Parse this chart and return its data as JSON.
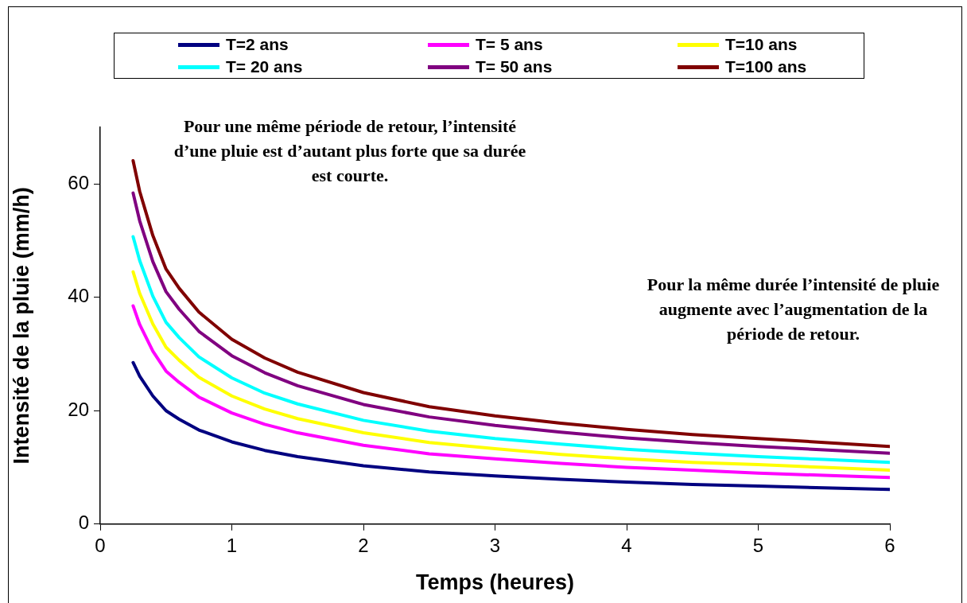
{
  "chart_data": {
    "type": "line",
    "xlabel": "Temps (heures)",
    "ylabel": "Intensité de la pluie (mm/h)",
    "x": [
      0.25,
      0.3,
      0.4,
      0.5,
      0.6,
      0.75,
      1,
      1.25,
      1.5,
      2,
      2.5,
      3,
      3.5,
      4,
      4.5,
      5,
      5.5,
      6
    ],
    "xlim": [
      0,
      6
    ],
    "xticks": [
      0,
      1,
      2,
      3,
      4,
      5,
      6
    ],
    "ylim": [
      0,
      70
    ],
    "yticks": [
      0,
      20,
      40,
      60
    ],
    "grid": false,
    "legend": "top",
    "marker": "none",
    "line_style": "solid",
    "series": [
      {
        "name": "T=2 ans",
        "color": "#000080",
        "values": [
          28.5,
          26.1,
          22.6,
          20,
          18.5,
          16.6,
          14.5,
          13,
          11.9,
          10.3,
          9.2,
          8.5,
          7.9,
          7.4,
          7,
          6.7,
          6.4,
          6.1
        ]
      },
      {
        "name": "T= 5 ans",
        "color": "#ff00ff",
        "values": [
          38.5,
          35.2,
          30.5,
          27,
          25,
          22.4,
          19.6,
          17.6,
          16.1,
          13.9,
          12.4,
          11.5,
          10.7,
          10,
          9.5,
          9,
          8.6,
          8.2
        ]
      },
      {
        "name": "T=10 ans",
        "color": "#ffff00",
        "values": [
          44.5,
          40.7,
          35.3,
          31.2,
          28.9,
          25.9,
          22.6,
          20.3,
          18.6,
          16.1,
          14.4,
          13.3,
          12.3,
          11.5,
          10.9,
          10.5,
          10,
          9.5
        ]
      },
      {
        "name": "T= 20 ans",
        "color": "#00ffff",
        "values": [
          50.7,
          46.5,
          40.2,
          35.6,
          32.9,
          29.5,
          25.8,
          23.1,
          21.2,
          18.3,
          16.4,
          15.1,
          14.1,
          13.2,
          12.5,
          11.9,
          11.4,
          10.9
        ]
      },
      {
        "name": "T= 50 ans",
        "color": "#800080",
        "values": [
          58.4,
          53.5,
          46.3,
          41,
          37.9,
          34,
          29.7,
          26.7,
          24.4,
          21.1,
          18.9,
          17.4,
          16.2,
          15.2,
          14.4,
          13.7,
          13.1,
          12.5
        ]
      },
      {
        "name": "T=100 ans",
        "color": "#800000",
        "values": [
          64.1,
          58.7,
          50.9,
          45,
          41.6,
          37.4,
          32.6,
          29.3,
          26.8,
          23.2,
          20.7,
          19.1,
          17.8,
          16.7,
          15.8,
          15.1,
          14.4,
          13.7
        ]
      }
    ],
    "annotations": [
      "Pour une même période de retour, l’intensité d’une pluie est d’autant plus forte que sa durée est courte.",
      "Pour la même durée l’intensité de pluie augmente avec l’augmentation de la période de retour."
    ]
  }
}
